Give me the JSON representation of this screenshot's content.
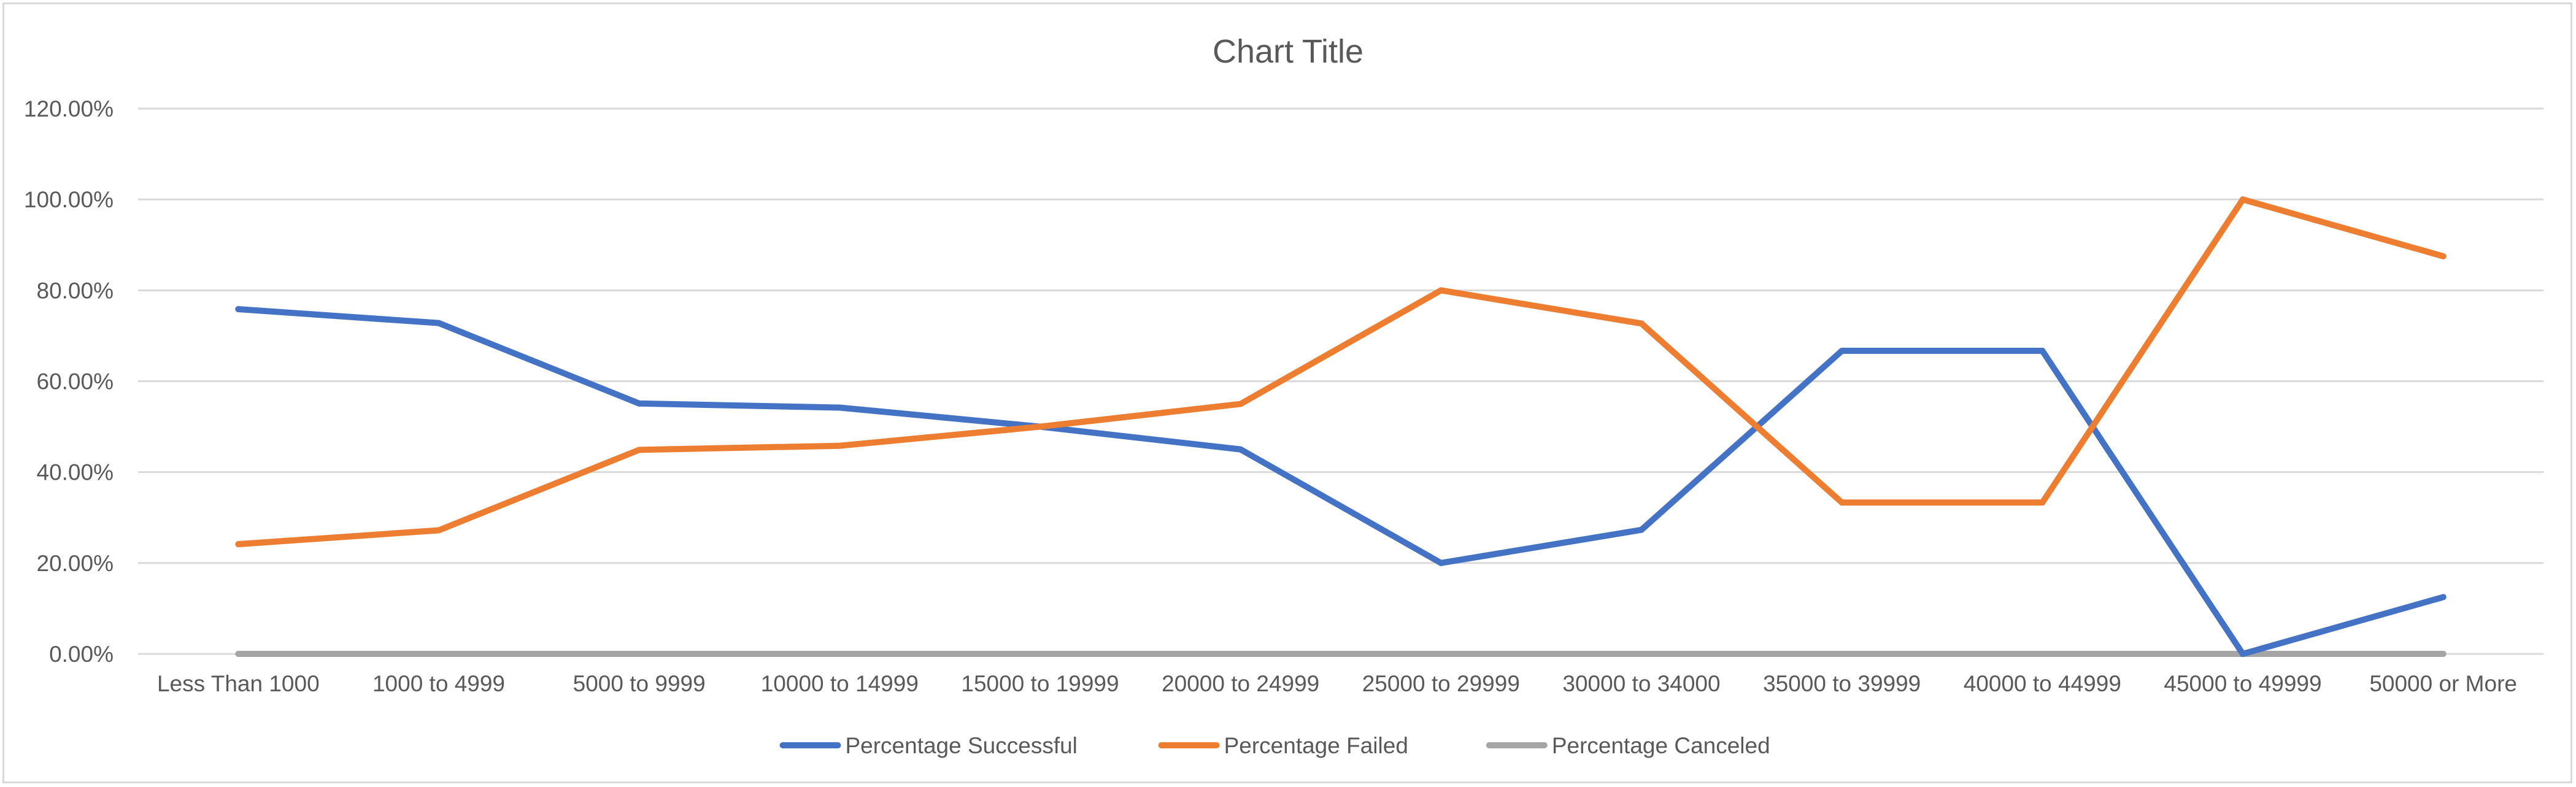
{
  "chart_data": {
    "type": "line",
    "title": "Chart Title",
    "xlabel": "",
    "ylabel": "",
    "categories": [
      "Less Than 1000",
      "1000 to 4999",
      "5000 to 9999",
      "10000 to 14999",
      "15000 to 19999",
      "20000 to 24999",
      "25000 to 29999",
      "30000 to 34000",
      "35000 to 39999",
      "40000 to 44999",
      "45000 to 49999",
      "50000 or More"
    ],
    "y_ticks": [
      "0.00%",
      "20.00%",
      "40.00%",
      "60.00%",
      "80.00%",
      "100.00%",
      "120.00%"
    ],
    "ylim": [
      0,
      120
    ],
    "grid": true,
    "legend_position": "bottom",
    "series": [
      {
        "name": "Percentage Successful",
        "color": "#4472C4",
        "values": [
          75.86,
          72.8,
          55.1,
          54.2,
          50.0,
          45.0,
          20.0,
          27.3,
          66.7,
          66.7,
          0.0,
          12.5
        ]
      },
      {
        "name": "Percentage Failed",
        "color": "#ED7D31",
        "values": [
          24.14,
          27.2,
          44.9,
          45.8,
          50.0,
          55.0,
          80.0,
          72.7,
          33.3,
          33.3,
          100.0,
          87.5
        ]
      },
      {
        "name": "Percentage Canceled",
        "color": "#A5A5A5",
        "values": [
          0,
          0,
          0,
          0,
          0,
          0,
          0,
          0,
          0,
          0,
          0,
          0
        ]
      }
    ]
  }
}
